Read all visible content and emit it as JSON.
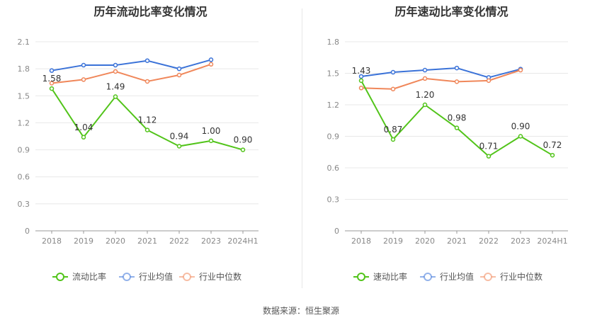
{
  "chart_data": [
    {
      "type": "line",
      "title": "历年流动比率变化情况",
      "categories": [
        "2018",
        "2019",
        "2020",
        "2021",
        "2022",
        "2023",
        "2024H1"
      ],
      "yticks": [
        "0",
        "0.3",
        "0.6",
        "0.9",
        "1.2",
        "1.5",
        "1.8",
        "2.1"
      ],
      "ylim": [
        0,
        2.1
      ],
      "grid": true,
      "legend_position": "bottom",
      "series": [
        {
          "name": "流动比率",
          "color": "#52c41a",
          "values": [
            1.58,
            1.04,
            1.49,
            1.12,
            0.94,
            1.0,
            0.9
          ],
          "labels": [
            "1.58",
            "1.04",
            "1.49",
            "1.12",
            "0.94",
            "1.00",
            "0.90"
          ]
        },
        {
          "name": "行业均值",
          "color": "#3a72d8",
          "values": [
            1.78,
            1.84,
            1.84,
            1.89,
            1.8,
            1.9,
            null
          ]
        },
        {
          "name": "行业中位数",
          "color": "#f0875a",
          "values": [
            1.64,
            1.68,
            1.77,
            1.66,
            1.73,
            1.85,
            null
          ]
        }
      ]
    },
    {
      "type": "line",
      "title": "历年速动比率变化情况",
      "categories": [
        "2018",
        "2019",
        "2020",
        "2021",
        "2022",
        "2023",
        "2024H1"
      ],
      "yticks": [
        "0",
        "0.3",
        "0.6",
        "0.9",
        "1.2",
        "1.5",
        "1.8"
      ],
      "ylim": [
        0,
        1.8
      ],
      "grid": true,
      "legend_position": "bottom",
      "series": [
        {
          "name": "速动比率",
          "color": "#52c41a",
          "values": [
            1.43,
            0.87,
            1.2,
            0.98,
            0.71,
            0.9,
            0.72
          ],
          "labels": [
            "1.43",
            "0.87",
            "1.20",
            "0.98",
            "0.71",
            "0.90",
            "0.72"
          ]
        },
        {
          "name": "行业均值",
          "color": "#3a72d8",
          "values": [
            1.47,
            1.51,
            1.53,
            1.55,
            1.46,
            1.54,
            null
          ]
        },
        {
          "name": "行业中位数",
          "color": "#f0875a",
          "values": [
            1.36,
            1.35,
            1.45,
            1.42,
            1.43,
            1.53,
            null
          ]
        }
      ]
    }
  ],
  "footer": "数据来源：恒生聚源"
}
